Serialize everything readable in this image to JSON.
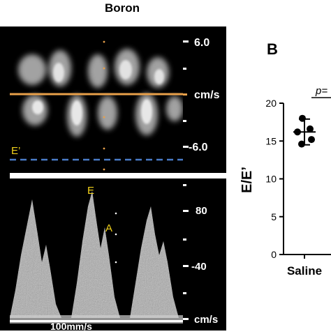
{
  "figure": {
    "title": "Boron",
    "panel_b_letter": "B"
  },
  "doppler_top": {
    "label": "E’",
    "scale_upper": "6.0",
    "scale_unit": "cm/s",
    "scale_lower": "-6.0",
    "side_label": "s",
    "colors": {
      "baseline": "#e8a04a",
      "e_prime_line": "#4a7cc8",
      "label": "#f2d21b"
    }
  },
  "doppler_bottom": {
    "label_e": "E",
    "label_a": "A",
    "scale_80": "80",
    "scale_40": "-40",
    "scale_unit": "cm/s",
    "sweep_label": "100mm/s",
    "colors": {
      "label": "#f2d21b"
    }
  },
  "chart_data": {
    "type": "scatter",
    "title": "",
    "ylabel": "E/E’",
    "xlabel": "",
    "categories": [
      "Saline"
    ],
    "ylim": [
      0,
      20
    ],
    "yticks": [
      0,
      5,
      10,
      15,
      20
    ],
    "annotation": "p=",
    "series": [
      {
        "category": "Saline",
        "values": [
          18.0,
          16.6,
          16.2,
          15.2,
          14.6
        ],
        "mean": 16.2,
        "error_low": 14.5,
        "error_high": 17.9
      }
    ]
  }
}
